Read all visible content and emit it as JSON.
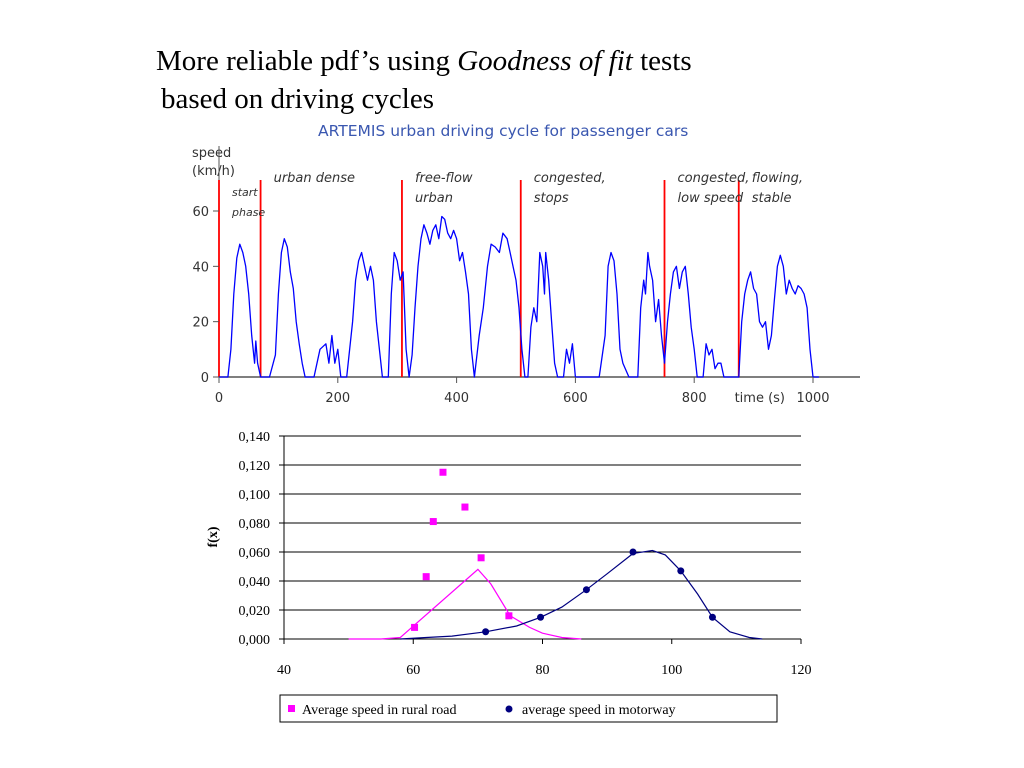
{
  "header": {
    "title_part1": "More reliable pdf’s using ",
    "title_italic": "Goodness of fit",
    "title_part2": " tests",
    "title_line2": "based on driving cycles"
  },
  "chart_data": [
    {
      "type": "line",
      "title": "ARTEMIS urban driving cycle for passenger cars",
      "ylabel_line1": "speed",
      "ylabel_line2": "(km/h)",
      "xlabel": "time (s)",
      "xlim": [
        0,
        1100
      ],
      "ylim": [
        0,
        70
      ],
      "x_ticks": [
        0,
        200,
        400,
        600,
        800,
        1000
      ],
      "y_ticks": [
        0,
        20,
        40,
        60
      ],
      "line_color": "#0000ff",
      "phase_line_color": "#ff0000",
      "phase_boundaries": [
        0,
        70,
        308,
        508,
        750,
        875
      ],
      "phases": [
        {
          "label_lines": [
            "start",
            "phase"
          ],
          "small": true
        },
        {
          "label_lines": [
            "urban dense"
          ],
          "small": false
        },
        {
          "label_lines": [
            "free-flow",
            "urban"
          ],
          "small": false
        },
        {
          "label_lines": [
            "congested,",
            "stops"
          ],
          "small": false
        },
        {
          "label_lines": [
            "congested,",
            "low speed"
          ],
          "small": false
        },
        {
          "label_lines": [
            "flowing,",
            "stable"
          ],
          "small": false
        }
      ],
      "series": [
        {
          "points": [
            [
              0,
              0
            ],
            [
              15,
              0
            ],
            [
              20,
              10
            ],
            [
              25,
              30
            ],
            [
              30,
              43
            ],
            [
              35,
              48
            ],
            [
              40,
              45
            ],
            [
              45,
              40
            ],
            [
              50,
              30
            ],
            [
              55,
              15
            ],
            [
              60,
              5
            ],
            [
              62,
              13
            ],
            [
              65,
              5
            ],
            [
              70,
              0
            ],
            [
              85,
              0
            ],
            [
              95,
              8
            ],
            [
              100,
              30
            ],
            [
              105,
              45
            ],
            [
              110,
              50
            ],
            [
              115,
              47
            ],
            [
              120,
              38
            ],
            [
              125,
              32
            ],
            [
              130,
              20
            ],
            [
              135,
              12
            ],
            [
              140,
              5
            ],
            [
              145,
              0
            ],
            [
              160,
              0
            ],
            [
              170,
              10
            ],
            [
              180,
              12
            ],
            [
              185,
              5
            ],
            [
              190,
              15
            ],
            [
              195,
              5
            ],
            [
              200,
              10
            ],
            [
              205,
              0
            ],
            [
              215,
              0
            ],
            [
              225,
              20
            ],
            [
              230,
              35
            ],
            [
              235,
              42
            ],
            [
              240,
              45
            ],
            [
              245,
              40
            ],
            [
              250,
              35
            ],
            [
              255,
              40
            ],
            [
              260,
              35
            ],
            [
              265,
              20
            ],
            [
              270,
              10
            ],
            [
              275,
              0
            ],
            [
              285,
              0
            ],
            [
              290,
              30
            ],
            [
              295,
              45
            ],
            [
              300,
              42
            ],
            [
              305,
              35
            ],
            [
              310,
              38
            ],
            [
              315,
              10
            ],
            [
              320,
              0
            ],
            [
              325,
              8
            ],
            [
              330,
              25
            ],
            [
              335,
              40
            ],
            [
              340,
              50
            ],
            [
              345,
              55
            ],
            [
              350,
              52
            ],
            [
              355,
              48
            ],
            [
              360,
              53
            ],
            [
              365,
              55
            ],
            [
              370,
              50
            ],
            [
              375,
              58
            ],
            [
              380,
              57
            ],
            [
              385,
              52
            ],
            [
              390,
              50
            ],
            [
              395,
              53
            ],
            [
              400,
              50
            ],
            [
              405,
              42
            ],
            [
              410,
              45
            ],
            [
              415,
              38
            ],
            [
              420,
              30
            ],
            [
              425,
              10
            ],
            [
              430,
              0
            ],
            [
              438,
              15
            ],
            [
              445,
              25
            ],
            [
              452,
              40
            ],
            [
              458,
              48
            ],
            [
              465,
              47
            ],
            [
              472,
              45
            ],
            [
              478,
              52
            ],
            [
              485,
              50
            ],
            [
              490,
              45
            ],
            [
              495,
              40
            ],
            [
              500,
              35
            ],
            [
              505,
              25
            ],
            [
              510,
              10
            ],
            [
              515,
              0
            ],
            [
              520,
              0
            ],
            [
              525,
              18
            ],
            [
              530,
              25
            ],
            [
              535,
              20
            ],
            [
              540,
              45
            ],
            [
              545,
              40
            ],
            [
              548,
              30
            ],
            [
              550,
              45
            ],
            [
              555,
              35
            ],
            [
              560,
              20
            ],
            [
              565,
              5
            ],
            [
              570,
              0
            ],
            [
              580,
              0
            ],
            [
              585,
              10
            ],
            [
              590,
              5
            ],
            [
              595,
              12
            ],
            [
              600,
              0
            ],
            [
              630,
              0
            ],
            [
              640,
              0
            ],
            [
              650,
              15
            ],
            [
              655,
              40
            ],
            [
              660,
              45
            ],
            [
              665,
              42
            ],
            [
              670,
              30
            ],
            [
              675,
              10
            ],
            [
              680,
              5
            ],
            [
              690,
              0
            ],
            [
              705,
              0
            ],
            [
              710,
              25
            ],
            [
              715,
              35
            ],
            [
              718,
              30
            ],
            [
              722,
              45
            ],
            [
              725,
              40
            ],
            [
              730,
              35
            ],
            [
              735,
              20
            ],
            [
              740,
              28
            ],
            [
              745,
              15
            ],
            [
              750,
              5
            ],
            [
              755,
              20
            ],
            [
              760,
              30
            ],
            [
              765,
              38
            ],
            [
              770,
              40
            ],
            [
              775,
              32
            ],
            [
              780,
              38
            ],
            [
              785,
              40
            ],
            [
              790,
              30
            ],
            [
              795,
              18
            ],
            [
              800,
              10
            ],
            [
              805,
              0
            ],
            [
              815,
              0
            ],
            [
              820,
              12
            ],
            [
              825,
              8
            ],
            [
              830,
              10
            ],
            [
              835,
              3
            ],
            [
              840,
              5
            ],
            [
              845,
              5
            ],
            [
              850,
              0
            ],
            [
              860,
              0
            ],
            [
              875,
              0
            ],
            [
              880,
              20
            ],
            [
              885,
              30
            ],
            [
              890,
              35
            ],
            [
              895,
              38
            ],
            [
              900,
              32
            ],
            [
              905,
              30
            ],
            [
              910,
              20
            ],
            [
              915,
              18
            ],
            [
              920,
              20
            ],
            [
              925,
              10
            ],
            [
              930,
              15
            ],
            [
              935,
              28
            ],
            [
              940,
              40
            ],
            [
              945,
              44
            ],
            [
              950,
              40
            ],
            [
              955,
              30
            ],
            [
              960,
              35
            ],
            [
              965,
              32
            ],
            [
              970,
              30
            ],
            [
              975,
              33
            ],
            [
              980,
              32
            ],
            [
              985,
              30
            ],
            [
              990,
              25
            ],
            [
              995,
              10
            ],
            [
              1000,
              0
            ],
            [
              1010,
              0
            ]
          ]
        }
      ]
    },
    {
      "type": "scatter",
      "title": "",
      "xlabel": "",
      "ylabel": "f(x)",
      "xlim": [
        40,
        120
      ],
      "ylim": [
        0,
        0.14
      ],
      "x_ticks": [
        40,
        60,
        80,
        100,
        120
      ],
      "y_ticks": [
        0,
        0.02,
        0.04,
        0.06,
        0.08,
        0.1,
        0.12,
        0.14
      ],
      "y_tick_labels": [
        "0,000",
        "0,020",
        "0,040",
        "0,060",
        "0,080",
        "0,100",
        "0,120",
        "0,140"
      ],
      "x_tick_labels": [
        "40",
        "60",
        "80",
        "100",
        "120"
      ],
      "legend_position": "bottom",
      "series": [
        {
          "name": "Average speed in rural road",
          "color": "#ff00ff",
          "marker": "square",
          "points": [
            [
              60.2,
              0.008
            ],
            [
              62.0,
              0.043
            ],
            [
              63.1,
              0.081
            ],
            [
              64.6,
              0.115
            ],
            [
              68.0,
              0.091
            ],
            [
              70.5,
              0.056
            ],
            [
              74.8,
              0.016
            ]
          ],
          "fit": [
            [
              50,
              0.0
            ],
            [
              55,
              0.0
            ],
            [
              58,
              0.001
            ],
            [
              70,
              0.048
            ],
            [
              72,
              0.038
            ],
            [
              75,
              0.016
            ],
            [
              78,
              0.008
            ],
            [
              80,
              0.004
            ],
            [
              83,
              0.001
            ],
            [
              86,
              0.0
            ]
          ]
        },
        {
          "name": "average speed in motorway",
          "color": "#000080",
          "marker": "circle",
          "points": [
            [
              71.2,
              0.005
            ],
            [
              79.7,
              0.015
            ],
            [
              86.8,
              0.034
            ],
            [
              94.0,
              0.06
            ],
            [
              101.4,
              0.047
            ],
            [
              106.3,
              0.015
            ]
          ],
          "fit": [
            [
              58,
              0.0
            ],
            [
              62,
              0.001
            ],
            [
              66,
              0.002
            ],
            [
              71.2,
              0.005
            ],
            [
              76,
              0.009
            ],
            [
              79.7,
              0.015
            ],
            [
              83,
              0.022
            ],
            [
              86.8,
              0.034
            ],
            [
              90,
              0.045
            ],
            [
              94,
              0.059
            ],
            [
              97,
              0.061
            ],
            [
              99,
              0.058
            ],
            [
              101.4,
              0.047
            ],
            [
              104,
              0.031
            ],
            [
              106.3,
              0.015
            ],
            [
              109,
              0.005
            ],
            [
              112,
              0.001
            ],
            [
              114,
              0.0
            ]
          ]
        }
      ]
    }
  ]
}
